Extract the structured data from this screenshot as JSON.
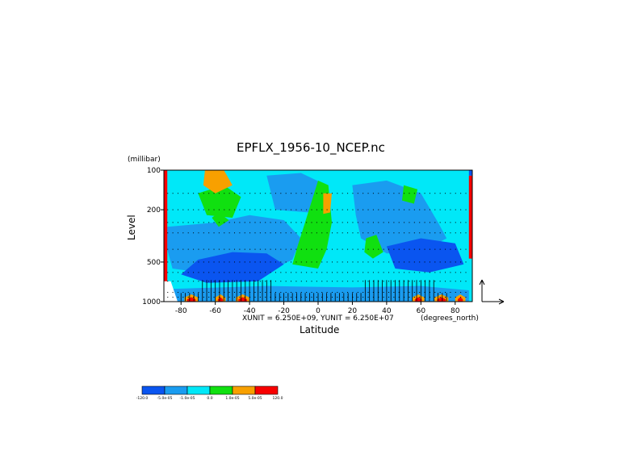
{
  "chart_data": {
    "type": "heatmap",
    "title": "EPFLX_1956-10_NCEP.nc",
    "xlabel": "Latitude",
    "ylabel": "Level",
    "x_units": "(degrees_north)",
    "y_units": "(millibar)",
    "xlim": [
      -90,
      90
    ],
    "ylim": [
      1000,
      100
    ],
    "y_scale": "log",
    "x_ticks": [
      "-80",
      "-60",
      "-40",
      "-20",
      "0",
      "20",
      "40",
      "60",
      "80"
    ],
    "x_tick_values": [
      -80,
      -60,
      -40,
      -20,
      0,
      20,
      40,
      60,
      80
    ],
    "y_ticks": [
      "100",
      "200",
      "500",
      "1000"
    ],
    "y_tick_values": [
      100,
      200,
      500,
      1000
    ],
    "vector_scale_note": "XUNIT = 6.250E+09, YUNIT = 6.250E+07",
    "colorbar": {
      "labels": [
        "-120.0",
        "-5.0e-05",
        "-1.0e-05",
        "0.0",
        "1.0e-05",
        "5.0e-05",
        "120.0"
      ],
      "colors": [
        "#0a55f0",
        "#1a9cf0",
        "#00e8f8",
        "#10e010",
        "#f8a000",
        "#f80000"
      ]
    },
    "regions_note": "Filled contour field of EP flux divergence with overlaid flux vectors (quiver) concentrated near 1000 mb."
  }
}
